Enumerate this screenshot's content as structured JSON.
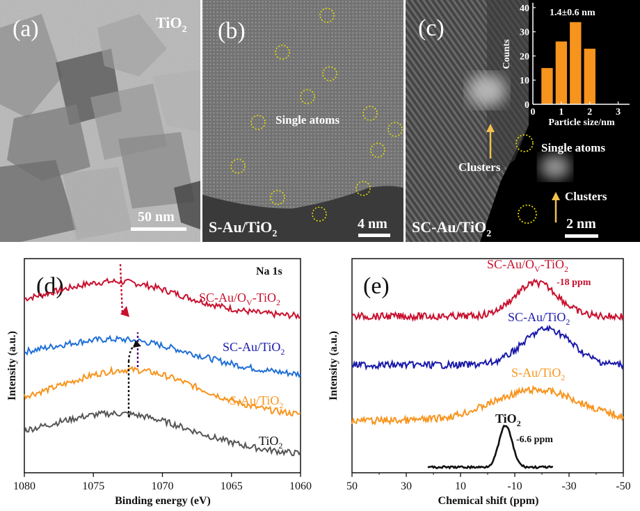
{
  "panels": {
    "a": {
      "letter": "(a)",
      "material": "TiO",
      "material_sub": "2",
      "scale": "50 nm"
    },
    "b": {
      "letter": "(b)",
      "annotation": "Single atoms",
      "sample": "S-Au/TiO",
      "sample_sub": "2",
      "scale": "4 nm"
    },
    "c": {
      "letter": "(c)",
      "single_atoms": "Single atoms",
      "clusters_left": "Clusters",
      "clusters_right": "Clusters",
      "sample": "SC-Au/TiO",
      "sample_sub": "2",
      "scale": "2 nm"
    },
    "d": {
      "letter": "(d)",
      "element_label": "Na 1s"
    },
    "e": {
      "letter": "(e)"
    }
  },
  "colors": {
    "red": "#c8102e",
    "blue": "#1f6fd6",
    "orange": "#f7941d",
    "gray": "#555555",
    "navy": "#1a1aaa",
    "inset_bar": "#f7941d",
    "circle": "#e8e000",
    "arrow": "#f2c14e"
  },
  "chart_data": [
    {
      "id": "inset",
      "type": "bar",
      "title": "1.4±0.6 nm",
      "xlabel": "Particle size/nm",
      "ylabel": "Counts",
      "x": [
        0.5,
        1.0,
        1.5,
        2.0
      ],
      "values": [
        15,
        26,
        34,
        23
      ],
      "bar_width": 0.4,
      "xlim": [
        0,
        3.4
      ],
      "ylim": [
        0,
        42
      ],
      "xticks": [
        "0",
        "1",
        "2",
        "3"
      ],
      "yticks": [
        "0",
        "10",
        "20",
        "30",
        "40"
      ]
    },
    {
      "id": "xps",
      "type": "line",
      "title": "",
      "element": "Na 1s",
      "xlabel": "Binding energy (eV)",
      "ylabel": "Intensity (a.u.)",
      "xlim": [
        1080,
        1060
      ],
      "xticks": [
        "1080",
        "1075",
        "1070",
        "1065",
        "1060"
      ],
      "series": [
        {
          "name": "SC-Au/O",
          "name_sub": "V",
          "name_tail": "-TiO",
          "tail_sub": "2",
          "peak": 1073.2,
          "height": 42,
          "width": 4.5,
          "baseline_start": 82,
          "baseline_end": 70
        },
        {
          "name": "SC-Au/TiO",
          "name_sub": "2",
          "peak": 1073.0,
          "height": 40,
          "width": 5.2,
          "baseline_start": 55,
          "baseline_end": 37
        },
        {
          "name": "S-Au/TiO",
          "name_sub": "2",
          "peak": 1072.2,
          "height": 58,
          "width": 4.8,
          "baseline_start": 40,
          "baseline_end": 27
        },
        {
          "name": "TiO",
          "name_sub": "2",
          "peak": 1073.0,
          "height": 48,
          "width": 5.0,
          "baseline_start": 40,
          "baseline_end": 23
        }
      ]
    },
    {
      "id": "nmr",
      "type": "line",
      "title": "",
      "xlabel": "Chemical shift (ppm)",
      "ylabel": "Intensity (a.u.)",
      "xlim": [
        50,
        -50
      ],
      "xticks": [
        "50",
        "30",
        "10",
        "-10",
        "-30",
        "-50"
      ],
      "series": [
        {
          "name": "SC-Au/O",
          "name_sub": "V",
          "name_tail": "-TiO",
          "tail_sub": "2",
          "shift_label": "-18 ppm",
          "peak": -18,
          "height": 60,
          "width": 8
        },
        {
          "name": "SC-Au/TiO",
          "name_sub": "2",
          "peak": -22,
          "height": 65,
          "width": 9
        },
        {
          "name": "S-Au/TiO",
          "name_sub": "2",
          "peak": -18,
          "height": 55,
          "width": 16
        },
        {
          "name": "TiO",
          "name_sub": "2",
          "shift_label": "-6.6 ppm",
          "peak": -6.6,
          "height": 100,
          "width": 2.4
        }
      ]
    }
  ]
}
